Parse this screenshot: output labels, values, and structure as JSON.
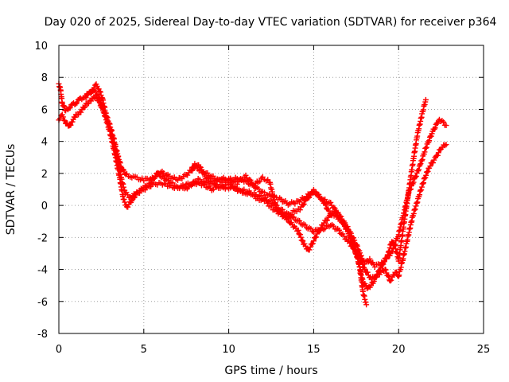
{
  "chart_data": {
    "type": "scatter",
    "title": "Day 020 of 2025, Sidereal Day-to-day VTEC variation (SDTVAR) for receiver p364",
    "xlabel": "GPS time / hours",
    "ylabel": "SDTVAR / TECUs",
    "xlim": [
      0,
      25
    ],
    "ylim": [
      -8,
      10
    ],
    "xticks": [
      0,
      5,
      10,
      15,
      20,
      25
    ],
    "xtick_labels": [
      "0",
      "5",
      "10",
      "15",
      "20",
      "25"
    ],
    "yticks": [
      -8,
      -6,
      -4,
      -2,
      0,
      2,
      4,
      6,
      8,
      10
    ],
    "ytick_labels": [
      "-8",
      "-6",
      "-4",
      "-2",
      "0",
      "2",
      "4",
      "6",
      "8",
      "10"
    ],
    "grid": true,
    "legend": "none",
    "marker": "plus",
    "marker_color": "#ff0000",
    "series": [
      {
        "x": [
          0.0,
          0.1,
          0.2,
          0.4,
          0.6,
          0.8,
          1.0,
          1.2,
          1.5,
          1.8,
          2.0,
          2.2,
          2.4,
          2.6,
          2.8,
          3.0,
          3.2,
          3.5,
          3.7,
          4.0,
          4.3,
          4.6,
          5.0,
          5.5,
          6.0,
          6.5,
          7.0,
          7.5,
          8.0,
          8.5,
          9.0,
          9.5,
          10.0,
          10.5,
          11.0,
          11.5,
          12.0,
          12.5,
          13.0,
          13.5,
          14.0,
          14.5,
          15.0,
          15.5,
          16.0,
          16.5,
          17.0,
          17.5,
          17.8,
          18.0,
          18.3,
          18.6,
          19.0,
          19.3,
          19.6,
          20.0,
          20.3,
          20.6,
          21.0,
          21.3,
          21.6,
          22.0,
          22.4,
          22.8
        ],
        "y": [
          7.6,
          7.2,
          6.4,
          5.9,
          6.1,
          6.3,
          6.4,
          6.6,
          6.8,
          7.0,
          7.3,
          7.5,
          7.2,
          6.5,
          5.6,
          5.0,
          4.3,
          3.0,
          2.3,
          1.9,
          1.8,
          1.7,
          1.6,
          1.7,
          2.1,
          1.8,
          1.6,
          1.9,
          2.4,
          2.1,
          1.8,
          1.5,
          1.6,
          1.7,
          1.5,
          1.2,
          0.8,
          0.6,
          0.4,
          0.1,
          0.2,
          0.5,
          0.9,
          0.4,
          0.1,
          -0.6,
          -1.4,
          -2.4,
          -3.2,
          -3.6,
          -3.4,
          -3.8,
          -3.6,
          -3.3,
          -2.9,
          -1.8,
          -0.5,
          0.8,
          1.8,
          2.6,
          3.6,
          4.6,
          5.4,
          5.0
        ]
      },
      {
        "x": [
          0.0,
          0.2,
          0.4,
          0.6,
          0.8,
          1.0,
          1.3,
          1.6,
          1.9,
          2.2,
          2.5,
          2.8,
          3.0,
          3.3,
          3.5,
          3.7,
          3.9,
          4.2,
          4.5,
          5.0,
          5.5,
          6.0,
          6.5,
          7.0,
          7.5,
          8.0,
          8.5,
          9.0,
          9.5,
          10.0,
          10.5,
          11.0,
          11.5,
          12.0,
          12.5,
          13.0,
          13.5,
          14.0,
          14.5,
          15.0,
          15.5,
          16.0,
          16.5,
          17.0,
          17.5,
          17.8,
          18.0,
          18.4,
          18.8,
          19.2,
          19.5,
          19.8,
          20.0,
          20.2,
          20.5,
          20.8,
          21.2,
          21.5,
          21.8,
          22.2,
          22.5,
          22.8
        ],
        "y": [
          5.4,
          5.6,
          5.2,
          4.9,
          5.3,
          5.6,
          5.9,
          6.3,
          6.6,
          6.8,
          6.2,
          5.5,
          4.8,
          3.6,
          2.6,
          1.6,
          0.8,
          0.5,
          0.7,
          1.0,
          1.3,
          1.4,
          1.2,
          1.1,
          1.3,
          1.4,
          1.3,
          1.0,
          1.2,
          1.4,
          1.0,
          0.9,
          0.7,
          0.5,
          0.2,
          -0.2,
          -0.6,
          -0.9,
          -1.3,
          -1.6,
          -1.5,
          -1.2,
          -1.6,
          -2.2,
          -2.9,
          -3.5,
          -4.0,
          -4.6,
          -4.3,
          -4.0,
          -4.7,
          -4.2,
          -4.4,
          -3.6,
          -2.2,
          -0.8,
          0.6,
          1.6,
          2.4,
          3.0,
          3.6,
          3.8
        ]
      },
      {
        "x": [
          1.6,
          1.8,
          2.0,
          2.3,
          2.6,
          3.0,
          3.3,
          3.6,
          3.8,
          4.0,
          4.3,
          4.6,
          5.0,
          5.4,
          5.8,
          6.2,
          6.6,
          7.0,
          7.4,
          7.8,
          8.2,
          8.6,
          9.0,
          9.5,
          10.0,
          10.5,
          11.0,
          11.5,
          12.0,
          12.4,
          12.8,
          13.2,
          13.5,
          13.8,
          14.1,
          14.4,
          14.7,
          15.0,
          15.3,
          15.6,
          16.0,
          16.3,
          16.6,
          17.0,
          17.3,
          17.6,
          17.9,
          18.2,
          18.5,
          18.8,
          19.1,
          19.4,
          19.6,
          19.8,
          20.0,
          20.2,
          20.5,
          20.8,
          21.1,
          21.4,
          21.6
        ],
        "y": [
          6.8,
          7.0,
          7.2,
          6.9,
          6.0,
          4.6,
          3.2,
          1.6,
          0.4,
          -0.1,
          0.3,
          0.8,
          1.1,
          1.4,
          2.0,
          1.7,
          1.4,
          1.2,
          1.0,
          1.3,
          1.6,
          1.5,
          1.3,
          1.7,
          1.6,
          1.4,
          1.8,
          1.3,
          1.7,
          1.5,
          -0.2,
          -0.6,
          -0.9,
          -1.3,
          -1.6,
          -2.4,
          -2.8,
          -2.2,
          -1.6,
          -1.1,
          -0.6,
          -0.4,
          -0.9,
          -1.5,
          -2.5,
          -3.3,
          -4.8,
          -5.2,
          -4.8,
          -4.2,
          -3.6,
          -3.0,
          -2.2,
          -2.6,
          -3.4,
          -2.0,
          0.2,
          2.4,
          4.4,
          5.8,
          6.6
        ]
      },
      {
        "x": [
          7.8,
          8.0,
          8.3,
          8.6,
          9.0,
          9.4,
          9.8,
          10.2,
          10.6,
          11.0,
          11.4,
          11.8,
          12.2,
          12.6,
          13.0,
          13.4,
          13.8,
          14.2,
          14.6,
          15.0,
          15.3,
          15.6,
          15.9,
          16.2,
          16.6,
          17.0,
          17.4,
          17.7,
          17.9,
          18.1
        ],
        "y": [
          2.2,
          2.6,
          2.4,
          1.8,
          1.5,
          1.2,
          1.0,
          1.2,
          0.9,
          0.8,
          0.6,
          0.4,
          0.2,
          -0.2,
          -0.5,
          -0.8,
          -0.4,
          -0.2,
          0.4,
          0.9,
          0.6,
          0.2,
          -0.4,
          -0.6,
          -0.9,
          -1.6,
          -2.6,
          -3.8,
          -5.4,
          -6.2
        ]
      }
    ]
  }
}
